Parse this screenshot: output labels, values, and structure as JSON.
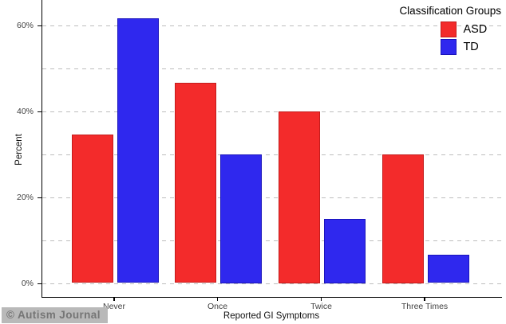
{
  "watermark": "© Autism Journal",
  "legend": {
    "title": "Classification Groups",
    "items": [
      {
        "label": "ASD",
        "color": "#f32b2b",
        "border": "#c31c1c"
      },
      {
        "label": "TD",
        "color": "#2f28ee",
        "border": "#1a14bb"
      }
    ],
    "position": "top-right-inside"
  },
  "chart_data": {
    "type": "bar",
    "title": "",
    "categories": [
      "Never",
      "Once",
      "Twice",
      "Three Times"
    ],
    "series": [
      {
        "name": "ASD",
        "color": "#f32b2b",
        "border": "#c31c1c",
        "values": [
          34.5,
          46.5,
          40,
          30
        ]
      },
      {
        "name": "TD",
        "color": "#2f28ee",
        "border": "#1a14bb",
        "values": [
          61.5,
          30,
          15,
          6.5
        ]
      }
    ],
    "xlabel": "Reported GI Symptoms",
    "ylabel": "Percent",
    "ylim": [
      0,
      66
    ],
    "yticks": [
      0,
      20,
      40,
      60
    ],
    "ytick_labels": [
      "0%",
      "20%",
      "40%",
      "60%"
    ],
    "gridlines": [
      0,
      10,
      20,
      30,
      40,
      50,
      60
    ],
    "grid_style": "horizontal-dashed-gray",
    "legend_position": "top-right inside panel"
  }
}
